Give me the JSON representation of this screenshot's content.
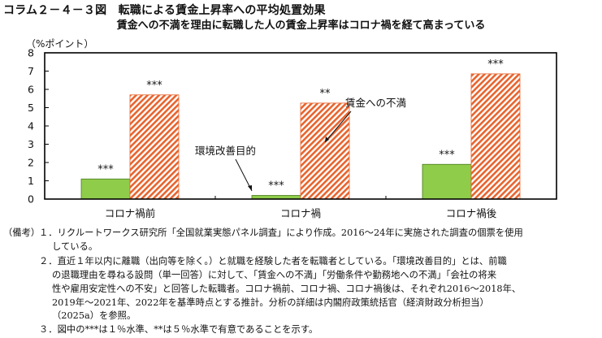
{
  "figure_title": "コラム２－４－３図　転職による賃金上昇率への平均処置効果",
  "subtitle": "賃金への不満を理由に転職した人の賃金上昇率はコロナ禍を経て高まっている",
  "y_unit_label": "（%ポイント）",
  "colors": {
    "green": "#8fcc4a",
    "green_stroke": "#4a7a1e",
    "hatch": "#e8642e",
    "frame": "#000000"
  },
  "chart_data": {
    "type": "bar",
    "title": "賃金への不満を理由に転職した人の賃金上昇率はコロナ禍を経て高まっている",
    "ylabel": "（%ポイント）",
    "ylim": [
      0,
      8
    ],
    "yticks": [
      0,
      1,
      2,
      3,
      4,
      5,
      6,
      7,
      8
    ],
    "categories": [
      "コロナ禍前",
      "コロナ禍",
      "コロナ禍後"
    ],
    "series": [
      {
        "name": "環境改善目的",
        "values": [
          1.1,
          0.2,
          1.9
        ],
        "significance": [
          "***",
          "***",
          "***"
        ]
      },
      {
        "name": "賃金への不満",
        "values": [
          5.7,
          5.25,
          6.85
        ],
        "significance": [
          "***",
          "**",
          "***"
        ]
      }
    ],
    "grid": false,
    "legend": "in-plot arrow callouts"
  },
  "notes": {
    "label": "（備考）",
    "n1": "１．リクルートワークス研究所「全国就業実態パネル調査」により作成。2016～24年に実施された調査の個票を使用",
    "n1b": "している。",
    "n2": "２．直近１年以内に離職（出向等を除く。）と就職を経験した者を転職者としている。「環境改善目的」とは、前職",
    "n2b": "の退職理由を尋ねる設問（単一回答）に対して、「賃金への不満」「労働条件や勤務地への不満」「会社の将来",
    "n2c": "性や雇用安定性への不安」と回答した転職者。コロナ禍前、コロナ禍、コロナ禍後は、それぞれ2016～2018年、",
    "n2d": "2019年～2021年、2022年を基準時点とする推計。分析の詳細は内閣府政策統括官（経済財政分析担当）",
    "n2e": "（2025a）を参照。",
    "n3": "３．図中の***は１％水準、**は５％水準で有意であることを示す。"
  }
}
